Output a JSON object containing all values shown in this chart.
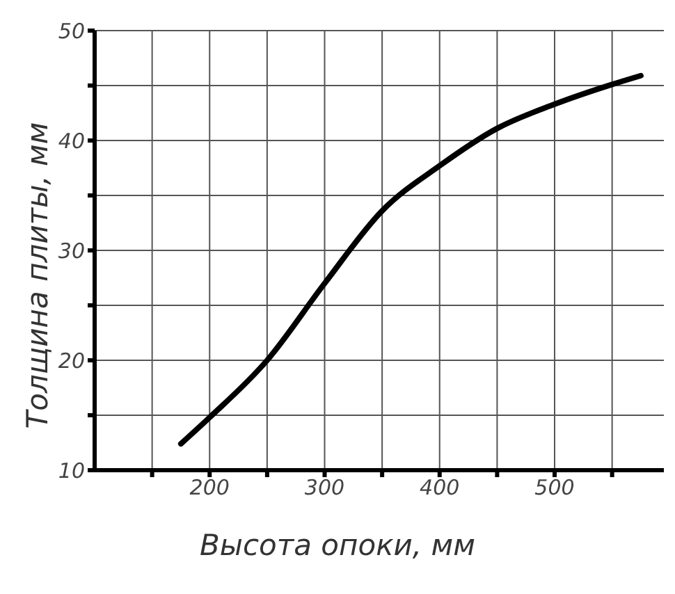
{
  "chart_data": {
    "type": "line",
    "xlabel": "Высота опоки, мм",
    "ylabel": "Толщина плиты, мм",
    "x": [
      175,
      200,
      250,
      300,
      350,
      400,
      450,
      500,
      550,
      575
    ],
    "series": [
      {
        "color": "#000000",
        "values": [
          12.4,
          14.8,
          20.0,
          27.0,
          33.6,
          37.7,
          41.1,
          43.3,
          45.1,
          45.9
        ]
      }
    ],
    "xlim": [
      100,
      595
    ],
    "xticks": [
      {
        "value": 150,
        "label": null
      },
      200,
      {
        "value": 250,
        "label": null
      },
      300,
      {
        "value": 350,
        "label": null
      },
      400,
      {
        "value": 450,
        "label": null
      },
      500,
      {
        "value": 550,
        "label": null
      }
    ],
    "ylim": [
      10,
      50
    ],
    "yticks": [
      10,
      {
        "value": 15,
        "label": null
      },
      20,
      {
        "value": 25,
        "label": null
      },
      30,
      {
        "value": 35,
        "label": null
      },
      40,
      {
        "value": 45,
        "label": null
      },
      50
    ],
    "grid": true,
    "marker": "none",
    "line_style": "solid"
  }
}
